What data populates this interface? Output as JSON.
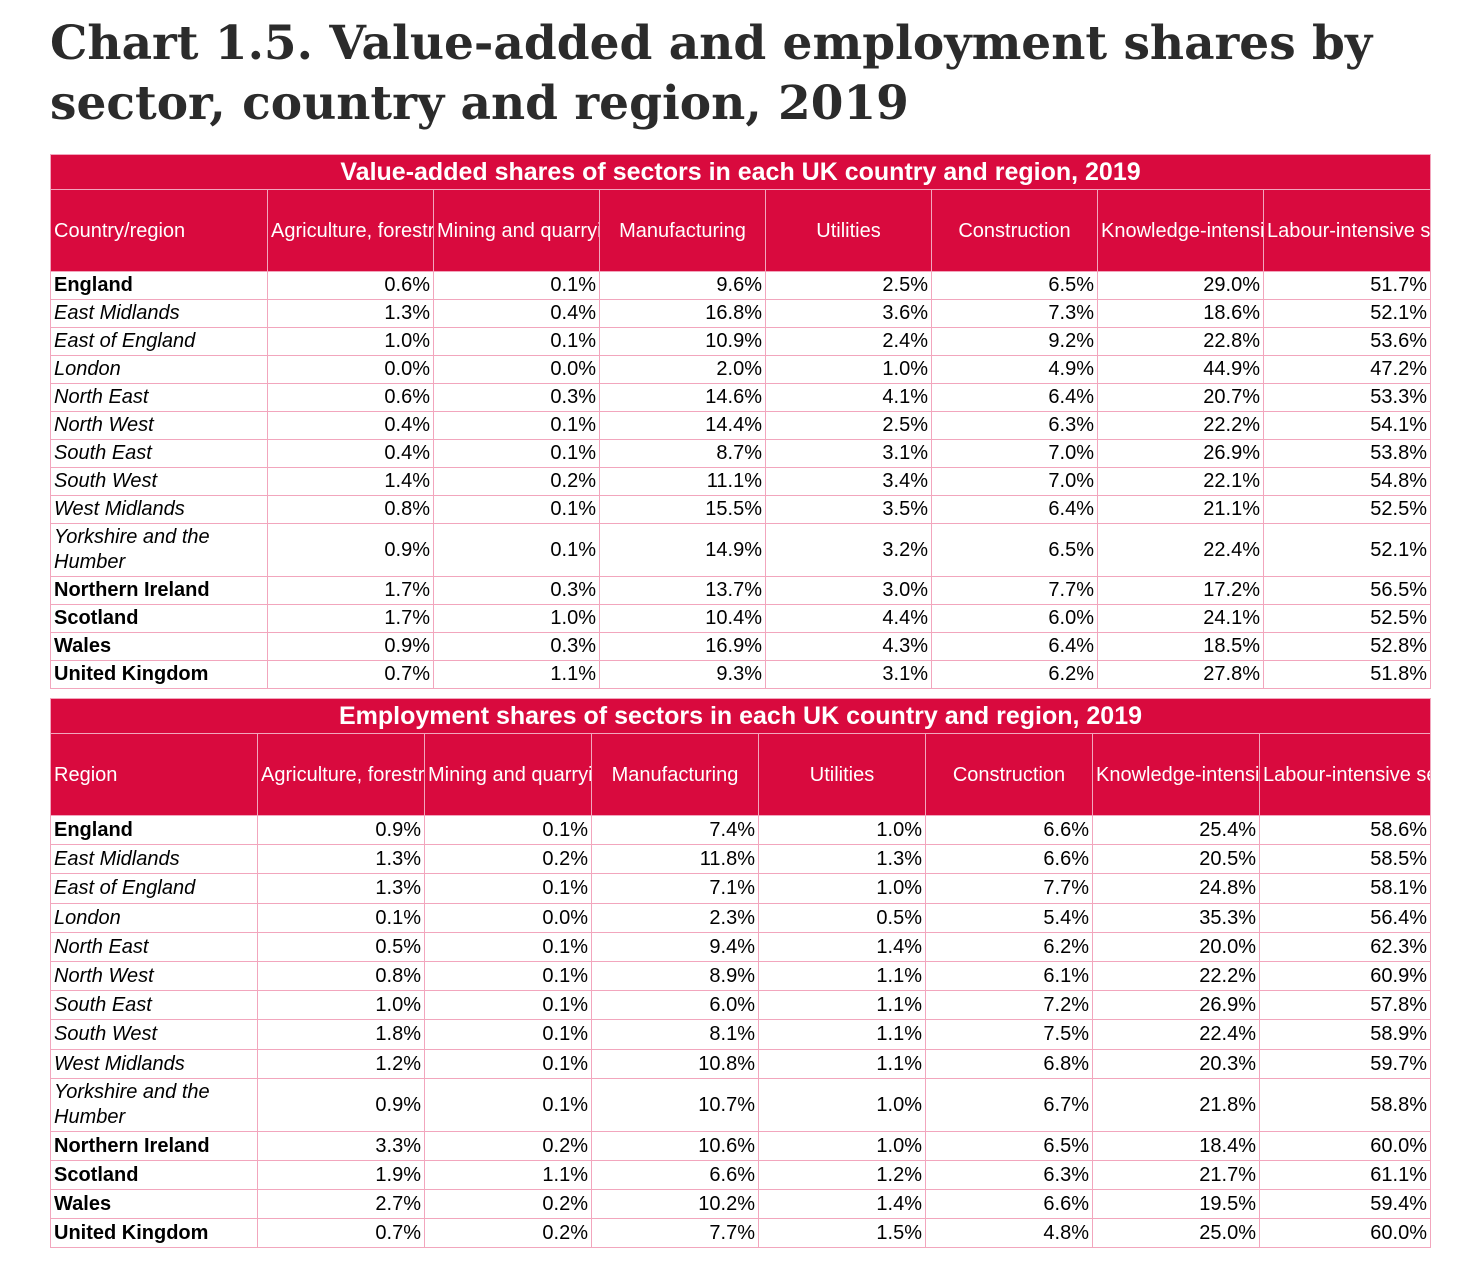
{
  "chart_data": [
    {
      "type": "table",
      "title": "Value-added shares of sectors in each UK country and region, 2019",
      "columns": [
        "Country/region",
        "Agriculture, forestry and fishing",
        "Mining and quarrying",
        "Manufacturing",
        "Utilities",
        "Construction",
        "Knowledge-intensive services",
        "Labour-intensive services"
      ],
      "rows": [
        {
          "region": "England",
          "style": "bold",
          "values": [
            "0.6%",
            "0.1%",
            "9.6%",
            "2.5%",
            "6.5%",
            "29.0%",
            "51.7%"
          ]
        },
        {
          "region": "East Midlands",
          "style": "italic",
          "values": [
            "1.3%",
            "0.4%",
            "16.8%",
            "3.6%",
            "7.3%",
            "18.6%",
            "52.1%"
          ]
        },
        {
          "region": "East of England",
          "style": "italic",
          "values": [
            "1.0%",
            "0.1%",
            "10.9%",
            "2.4%",
            "9.2%",
            "22.8%",
            "53.6%"
          ]
        },
        {
          "region": "London",
          "style": "italic",
          "values": [
            "0.0%",
            "0.0%",
            "2.0%",
            "1.0%",
            "4.9%",
            "44.9%",
            "47.2%"
          ]
        },
        {
          "region": "North East",
          "style": "italic",
          "values": [
            "0.6%",
            "0.3%",
            "14.6%",
            "4.1%",
            "6.4%",
            "20.7%",
            "53.3%"
          ]
        },
        {
          "region": "North West",
          "style": "italic",
          "values": [
            "0.4%",
            "0.1%",
            "14.4%",
            "2.5%",
            "6.3%",
            "22.2%",
            "54.1%"
          ]
        },
        {
          "region": "South East",
          "style": "italic",
          "values": [
            "0.4%",
            "0.1%",
            "8.7%",
            "3.1%",
            "7.0%",
            "26.9%",
            "53.8%"
          ]
        },
        {
          "region": "South West",
          "style": "italic",
          "values": [
            "1.4%",
            "0.2%",
            "11.1%",
            "3.4%",
            "7.0%",
            "22.1%",
            "54.8%"
          ]
        },
        {
          "region": "West Midlands",
          "style": "italic",
          "values": [
            "0.8%",
            "0.1%",
            "15.5%",
            "3.5%",
            "6.4%",
            "21.1%",
            "52.5%"
          ]
        },
        {
          "region": "Yorkshire and the Humber",
          "style": "italic",
          "values": [
            "0.9%",
            "0.1%",
            "14.9%",
            "3.2%",
            "6.5%",
            "22.4%",
            "52.1%"
          ]
        },
        {
          "region": "Northern Ireland",
          "style": "bold",
          "values": [
            "1.7%",
            "0.3%",
            "13.7%",
            "3.0%",
            "7.7%",
            "17.2%",
            "56.5%"
          ]
        },
        {
          "region": "Scotland",
          "style": "bold",
          "values": [
            "1.7%",
            "1.0%",
            "10.4%",
            "4.4%",
            "6.0%",
            "24.1%",
            "52.5%"
          ]
        },
        {
          "region": "Wales",
          "style": "bold",
          "values": [
            "0.9%",
            "0.3%",
            "16.9%",
            "4.3%",
            "6.4%",
            "18.5%",
            "52.8%"
          ]
        },
        {
          "region": "United Kingdom",
          "style": "bold",
          "values": [
            "0.7%",
            "1.1%",
            "9.3%",
            "3.1%",
            "6.2%",
            "27.8%",
            "51.8%"
          ]
        }
      ]
    },
    {
      "type": "table",
      "title": "Employment shares of sectors in each UK country and region, 2019",
      "columns": [
        "Region",
        "Agriculture, forestry and fishing",
        "Mining and quarrying",
        "Manufacturing",
        "Utilities",
        "Construction",
        "Knowledge-intensive services",
        "Labour-intensive services"
      ],
      "rows": [
        {
          "region": "England",
          "style": "bold",
          "values": [
            "0.9%",
            "0.1%",
            "7.4%",
            "1.0%",
            "6.6%",
            "25.4%",
            "58.6%"
          ]
        },
        {
          "region": "East Midlands",
          "style": "italic",
          "values": [
            "1.3%",
            "0.2%",
            "11.8%",
            "1.3%",
            "6.6%",
            "20.5%",
            "58.5%"
          ]
        },
        {
          "region": "East of England",
          "style": "italic",
          "values": [
            "1.3%",
            "0.1%",
            "7.1%",
            "1.0%",
            "7.7%",
            "24.8%",
            "58.1%"
          ]
        },
        {
          "region": "London",
          "style": "italic",
          "values": [
            "0.1%",
            "0.0%",
            "2.3%",
            "0.5%",
            "5.4%",
            "35.3%",
            "56.4%"
          ]
        },
        {
          "region": "North East",
          "style": "italic",
          "values": [
            "0.5%",
            "0.1%",
            "9.4%",
            "1.4%",
            "6.2%",
            "20.0%",
            "62.3%"
          ]
        },
        {
          "region": "North West",
          "style": "italic",
          "values": [
            "0.8%",
            "0.1%",
            "8.9%",
            "1.1%",
            "6.1%",
            "22.2%",
            "60.9%"
          ]
        },
        {
          "region": "South East",
          "style": "italic",
          "values": [
            "1.0%",
            "0.1%",
            "6.0%",
            "1.1%",
            "7.2%",
            "26.9%",
            "57.8%"
          ]
        },
        {
          "region": "South West",
          "style": "italic",
          "values": [
            "1.8%",
            "0.1%",
            "8.1%",
            "1.1%",
            "7.5%",
            "22.4%",
            "58.9%"
          ]
        },
        {
          "region": "West Midlands",
          "style": "italic",
          "values": [
            "1.2%",
            "0.1%",
            "10.8%",
            "1.1%",
            "6.8%",
            "20.3%",
            "59.7%"
          ]
        },
        {
          "region": "Yorkshire and the Humber",
          "style": "italic",
          "values": [
            "0.9%",
            "0.1%",
            "10.7%",
            "1.0%",
            "6.7%",
            "21.8%",
            "58.8%"
          ]
        },
        {
          "region": "Northern Ireland",
          "style": "bold",
          "values": [
            "3.3%",
            "0.2%",
            "10.6%",
            "1.0%",
            "6.5%",
            "18.4%",
            "60.0%"
          ]
        },
        {
          "region": "Scotland",
          "style": "bold",
          "values": [
            "1.9%",
            "1.1%",
            "6.6%",
            "1.2%",
            "6.3%",
            "21.7%",
            "61.1%"
          ]
        },
        {
          "region": "Wales",
          "style": "bold",
          "values": [
            "2.7%",
            "0.2%",
            "10.2%",
            "1.4%",
            "6.6%",
            "19.5%",
            "59.4%"
          ]
        },
        {
          "region": "United Kingdom",
          "style": "bold",
          "values": [
            "0.7%",
            "0.2%",
            "7.7%",
            "1.5%",
            "4.8%",
            "25.0%",
            "60.0%"
          ]
        }
      ]
    }
  ],
  "page": {
    "title": "Chart 1.5. Value-added and employment shares by sector, country and region, 2019"
  },
  "colors": {
    "header_bg": "#d90a3e",
    "header_text": "#ffffff",
    "grid": "#f2a6bd",
    "title_text": "#2b2b2b"
  }
}
